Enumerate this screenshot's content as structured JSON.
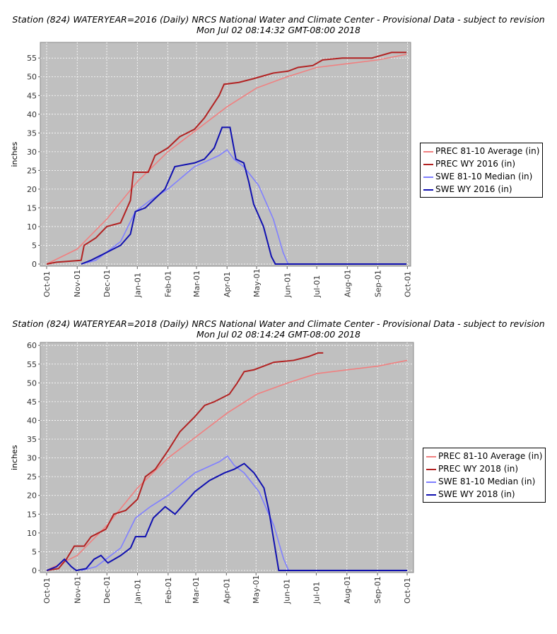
{
  "chart_data": [
    {
      "type": "line",
      "title": "Station (824) WATERYEAR=2016 (Daily) NRCS National Water and Climate Center - Provisional Data - subject to revision",
      "subtitle": "Mon Jul 02 08:14:32 GMT-08:00 2018",
      "xlabel": "",
      "ylabel": "inches",
      "ylim": [
        0,
        59
      ],
      "yticks": [
        0,
        5,
        10,
        15,
        20,
        25,
        30,
        35,
        40,
        45,
        50,
        55
      ],
      "xticks": [
        "Oct-01",
        "Nov-01",
        "Dec-01",
        "Jan-01",
        "Feb-01",
        "Mar-01",
        "Apr-01",
        "May-01",
        "Jun-01",
        "Jul-01",
        "Aug-01",
        "Sep-01",
        "Oct-01"
      ],
      "xtick_days": [
        0,
        31,
        61,
        92,
        123,
        152,
        183,
        213,
        244,
        274,
        305,
        336,
        366
      ],
      "grid": true,
      "legend": "right",
      "series": [
        {
          "name": "PREC 81-10 Average (in)",
          "color": "#f08080",
          "x": [
            0,
            31,
            61,
            92,
            123,
            153,
            183,
            213,
            244,
            274,
            305,
            336,
            365
          ],
          "y": [
            0,
            4,
            12,
            22,
            30,
            36,
            42,
            47,
            50,
            52.5,
            53.5,
            54.5,
            56
          ]
        },
        {
          "name": "PREC WY 2016  (in)",
          "color": "#b22222",
          "x": [
            0,
            10,
            35,
            38,
            50,
            61,
            75,
            85,
            88,
            103,
            110,
            123,
            135,
            150,
            160,
            175,
            180,
            195,
            210,
            230,
            245,
            255,
            270,
            280,
            300,
            330,
            350,
            365
          ],
          "y": [
            0,
            0.5,
            1,
            5,
            7,
            10,
            11,
            17,
            24.5,
            24.5,
            29,
            31,
            34,
            36,
            39,
            45,
            48,
            48.5,
            49.5,
            51,
            51.5,
            52.5,
            53,
            54.5,
            55,
            55,
            56.5,
            56.5
          ]
        },
        {
          "name": "SWE 81-10 Median (in)",
          "color": "#8080ff",
          "x": [
            35,
            50,
            60,
            75,
            90,
            105,
            123,
            150,
            175,
            183,
            190,
            200,
            215,
            230,
            240,
            245,
            365
          ],
          "y": [
            0,
            1,
            3,
            6,
            14,
            17,
            20,
            26,
            29,
            30.5,
            28,
            26,
            21,
            12,
            3,
            0,
            0
          ]
        },
        {
          "name": "SWE WY 2016  (in)",
          "color": "#1010b0",
          "x": [
            35,
            45,
            60,
            75,
            85,
            90,
            100,
            108,
            120,
            130,
            150,
            160,
            170,
            178,
            186,
            192,
            200,
            205,
            210,
            220,
            228,
            232,
            365
          ],
          "y": [
            0,
            1,
            3,
            5,
            8,
            14,
            15,
            17,
            20,
            26,
            27,
            28,
            31,
            36.5,
            36.5,
            28,
            27,
            22,
            16,
            10,
            2,
            0,
            0
          ]
        }
      ]
    },
    {
      "type": "line",
      "title": "Station (824) WATERYEAR=2018 (Daily) NRCS National Water and Climate Center - Provisional Data - subject to revision",
      "subtitle": "Mon Jul 02 08:14:24 GMT-08:00 2018",
      "xlabel": "",
      "ylabel": "inches",
      "ylim": [
        0,
        60.6
      ],
      "yticks": [
        0,
        5,
        10,
        15,
        20,
        25,
        30,
        35,
        40,
        45,
        50,
        55,
        60
      ],
      "xticks": [
        "Oct-01",
        "Nov-01",
        "Dec-01",
        "Jan-01",
        "Feb-01",
        "Mar-01",
        "Apr-01",
        "May-01",
        "Jun-01",
        "Jul-01",
        "Aug-01",
        "Sep-01",
        "Oct-01"
      ],
      "xtick_days": [
        0,
        31,
        61,
        92,
        123,
        151,
        182,
        212,
        243,
        273,
        304,
        335,
        365
      ],
      "grid": true,
      "legend": "right",
      "series": [
        {
          "name": "PREC 81-10 Average (in)",
          "color": "#f08080",
          "x": [
            0,
            31,
            61,
            92,
            123,
            153,
            183,
            213,
            244,
            274,
            305,
            336,
            365
          ],
          "y": [
            0,
            4,
            12,
            22,
            30,
            36,
            42,
            47,
            50,
            52.5,
            53.5,
            54.5,
            56
          ]
        },
        {
          "name": "PREC WY 2018  (in)",
          "color": "#b22222",
          "x": [
            0,
            12,
            20,
            28,
            38,
            45,
            60,
            68,
            80,
            92,
            100,
            110,
            123,
            135,
            150,
            160,
            170,
            185,
            193,
            200,
            210,
            220,
            230,
            250,
            265,
            275,
            280
          ],
          "y": [
            0,
            0.5,
            3,
            6.5,
            6.5,
            9,
            11,
            15,
            16,
            19,
            25,
            27,
            32,
            37,
            41,
            44,
            45,
            47,
            50,
            53,
            53.5,
            54.5,
            55.5,
            56,
            57,
            58,
            58
          ]
        },
        {
          "name": "SWE 81-10 Median (in)",
          "color": "#8080ff",
          "x": [
            35,
            50,
            60,
            75,
            90,
            105,
            123,
            150,
            175,
            183,
            190,
            200,
            215,
            230,
            240,
            245,
            365
          ],
          "y": [
            0,
            1,
            3,
            6,
            14,
            17,
            20,
            26,
            29,
            30.5,
            28,
            26,
            21,
            12,
            3,
            0,
            0
          ]
        },
        {
          "name": "SWE WY 2018  (in)",
          "color": "#1010b0",
          "x": [
            0,
            10,
            18,
            25,
            30,
            40,
            48,
            55,
            62,
            75,
            85,
            90,
            100,
            108,
            120,
            130,
            140,
            150,
            165,
            180,
            190,
            200,
            210,
            220,
            225,
            230,
            235,
            365
          ],
          "y": [
            0,
            1,
            3,
            1,
            0,
            0.5,
            3,
            4,
            2,
            4,
            6,
            9,
            9,
            14,
            17,
            15,
            18,
            21,
            24,
            26,
            27,
            28.5,
            26,
            22,
            16,
            8,
            0,
            0
          ]
        }
      ]
    }
  ]
}
